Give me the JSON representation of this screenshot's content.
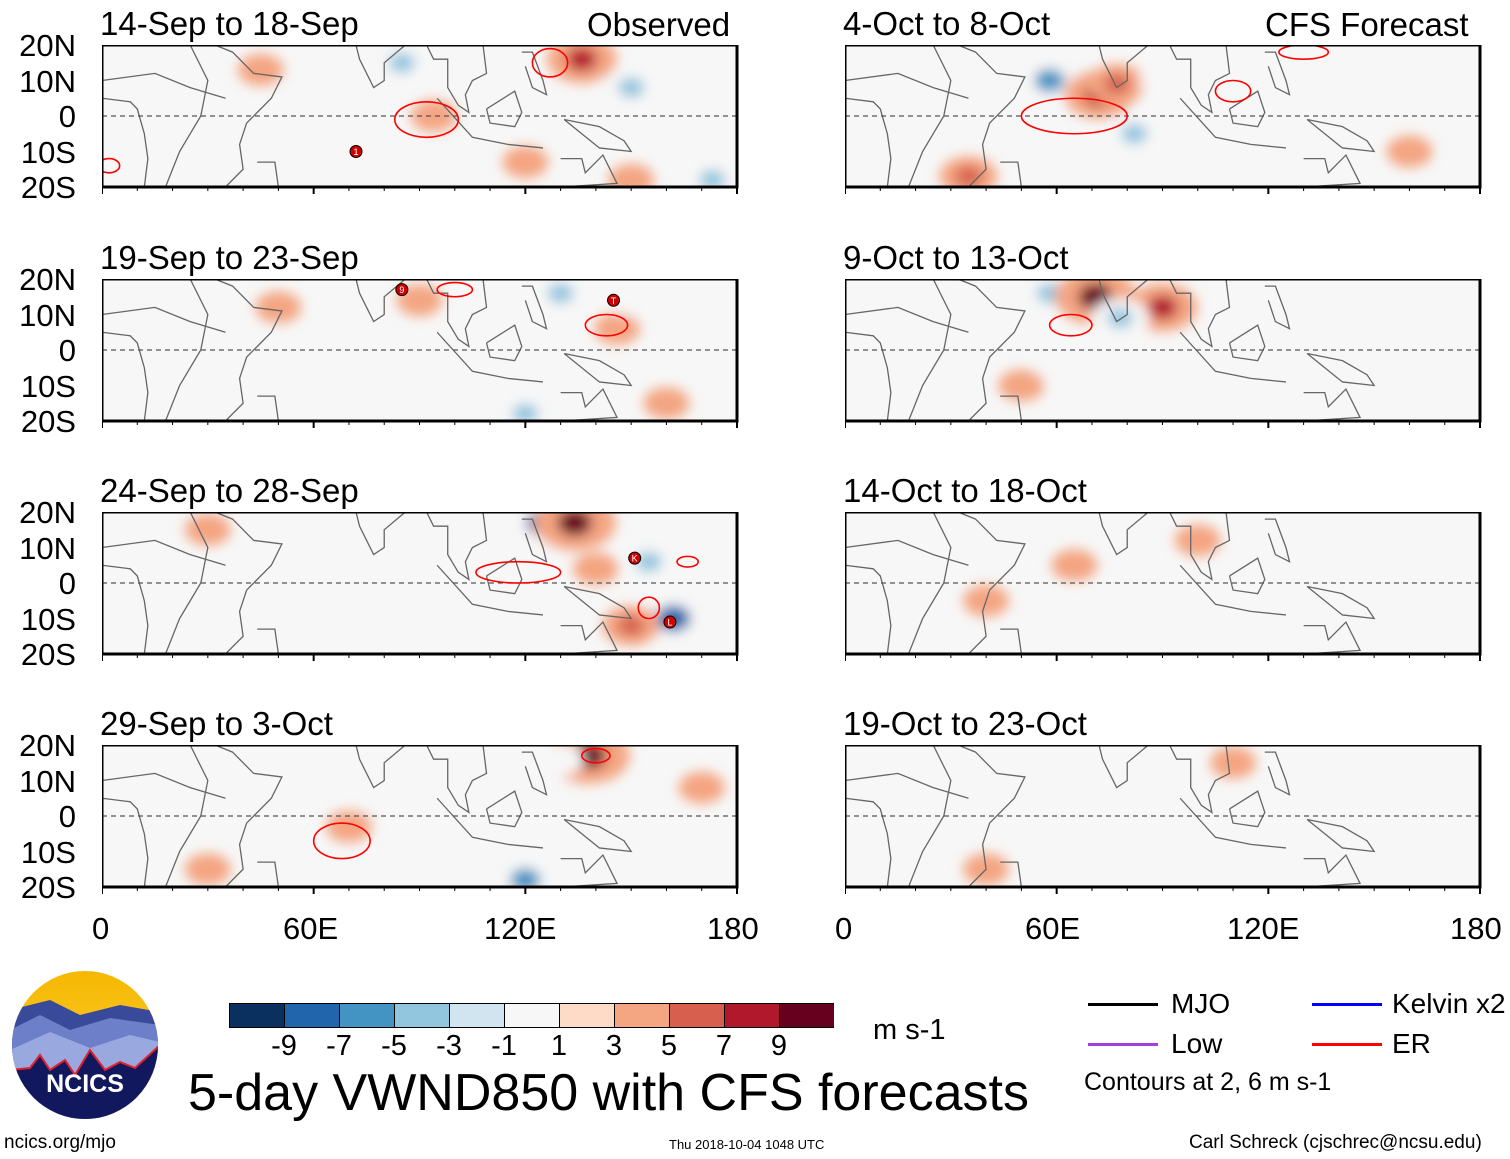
{
  "labels": {
    "observed": "Observed",
    "forecast": "CFS Forecast"
  },
  "lat_ticks": [
    "20N",
    "10N",
    "0",
    "10S",
    "20S"
  ],
  "lon_ticks": [
    "0",
    "60E",
    "120E",
    "180"
  ],
  "chart_data": {
    "type": "heatmap",
    "title": "5-day VWND850 with CFS forecasts",
    "variable": "850-hPa meridional wind anomaly",
    "units": "m s-1",
    "xlim": [
      0,
      180
    ],
    "ylim": [
      -20,
      20
    ],
    "colorbar": {
      "levels": [
        "-9",
        "-7",
        "-5",
        "-3",
        "-1",
        "1",
        "3",
        "5",
        "7",
        "9"
      ],
      "colors": [
        "#0a3060",
        "#2166ac",
        "#4393c3",
        "#92c5de",
        "#d1e5f0",
        "#f7f7f7",
        "#fddbc7",
        "#f4a582",
        "#d6604d",
        "#b2182b",
        "#67001f"
      ]
    },
    "panels": [
      {
        "title": "14-Sep to 18-Sep",
        "side": "observed",
        "blobs": [
          [
            85,
            15,
            -5
          ],
          [
            94,
            0,
            3
          ],
          [
            136,
            16,
            7
          ],
          [
            60,
            6,
            -3
          ],
          [
            150,
            8,
            -5
          ],
          [
            173,
            -18,
            -5
          ],
          [
            45,
            13,
            3
          ],
          [
            120,
            -13,
            3
          ],
          [
            150,
            -18,
            3
          ]
        ],
        "contours": [
          [
            92,
            -1,
            9,
            5
          ],
          [
            127,
            15,
            5,
            4
          ],
          [
            2,
            -14,
            3,
            2
          ]
        ],
        "storms": [
          {
            "lon": 72,
            "lat": -10,
            "label": "1"
          }
        ]
      },
      {
        "title": "19-Sep to 23-Sep",
        "side": "observed",
        "blobs": [
          [
            130,
            16,
            -5
          ],
          [
            146,
            6,
            3
          ],
          [
            150,
            14,
            -3
          ],
          [
            120,
            -18,
            -5
          ],
          [
            50,
            12,
            3
          ],
          [
            90,
            14,
            3
          ],
          [
            160,
            -15,
            3
          ],
          [
            40,
            -10,
            -3
          ],
          [
            110,
            0,
            -3
          ]
        ],
        "contours": [
          [
            143,
            7,
            6,
            3
          ],
          [
            100,
            17,
            5,
            2
          ]
        ],
        "storms": [
          {
            "lon": 85,
            "lat": 17,
            "label": "9"
          },
          {
            "lon": 145,
            "lat": 14,
            "label": "T"
          }
        ]
      },
      {
        "title": "24-Sep to 28-Sep",
        "side": "observed",
        "blobs": [
          [
            125,
            17,
            -9
          ],
          [
            134,
            17,
            9
          ],
          [
            155,
            6,
            -5
          ],
          [
            162,
            -10,
            -9
          ],
          [
            150,
            -12,
            5
          ],
          [
            55,
            3,
            -3
          ],
          [
            30,
            15,
            3
          ],
          [
            110,
            10,
            -3
          ],
          [
            140,
            4,
            3
          ]
        ],
        "contours": [
          [
            118,
            3,
            12,
            3
          ],
          [
            155,
            -7,
            3,
            3
          ],
          [
            166,
            6,
            3,
            1.5
          ]
        ],
        "storms": [
          {
            "lon": 151,
            "lat": 7,
            "label": "K"
          },
          {
            "lon": 161,
            "lat": -11,
            "label": "L"
          }
        ]
      },
      {
        "title": "29-Sep to 3-Oct",
        "side": "observed",
        "blobs": [
          [
            138,
            17,
            9
          ],
          [
            130,
            16,
            -3
          ],
          [
            55,
            10,
            -3
          ],
          [
            70,
            -3,
            3
          ],
          [
            120,
            -18,
            -7
          ],
          [
            30,
            -15,
            3
          ],
          [
            170,
            8,
            3
          ],
          [
            100,
            5,
            -3
          ]
        ],
        "contours": [
          [
            68,
            -7,
            8,
            5
          ],
          [
            140,
            17,
            4,
            2
          ]
        ],
        "storms": []
      },
      {
        "title": "4-Oct to 8-Oct",
        "side": "forecast",
        "blobs": [
          [
            58,
            10,
            -7
          ],
          [
            72,
            6,
            7
          ],
          [
            77,
            9,
            5
          ],
          [
            82,
            -5,
            -5
          ],
          [
            90,
            10,
            -3
          ],
          [
            35,
            -17,
            5
          ],
          [
            145,
            -2,
            -3
          ],
          [
            160,
            -10,
            3
          ],
          [
            120,
            15,
            -3
          ]
        ],
        "contours": [
          [
            65,
            0,
            15,
            5
          ],
          [
            110,
            7,
            5,
            3
          ],
          [
            130,
            18,
            7,
            2
          ]
        ],
        "storms": []
      },
      {
        "title": "9-Oct to 13-Oct",
        "side": "forecast",
        "blobs": [
          [
            58,
            16,
            -5
          ],
          [
            71,
            15,
            9
          ],
          [
            90,
            12,
            7
          ],
          [
            78,
            9,
            -5
          ],
          [
            60,
            -5,
            -3
          ],
          [
            85,
            -12,
            -3
          ],
          [
            150,
            10,
            -3
          ],
          [
            50,
            -10,
            3
          ]
        ],
        "contours": [
          [
            64,
            7,
            6,
            3
          ]
        ],
        "storms": []
      },
      {
        "title": "14-Oct to 18-Oct",
        "side": "forecast",
        "blobs": [
          [
            65,
            5,
            3
          ],
          [
            160,
            0,
            -3
          ],
          [
            90,
            -5,
            -3
          ],
          [
            130,
            10,
            -3
          ],
          [
            40,
            -5,
            3
          ],
          [
            100,
            12,
            3
          ]
        ],
        "contours": [],
        "storms": []
      },
      {
        "title": "19-Oct to 23-Oct",
        "side": "forecast",
        "blobs": [
          [
            110,
            15,
            3
          ],
          [
            150,
            5,
            -3
          ],
          [
            130,
            10,
            -3
          ],
          [
            60,
            -5,
            -3
          ],
          [
            40,
            -15,
            3
          ],
          [
            80,
            0,
            -3
          ]
        ],
        "contours": [],
        "storms": []
      }
    ]
  },
  "legend": {
    "items": [
      {
        "label": "MJO",
        "color": "#000000"
      },
      {
        "label": "Kelvin x2",
        "color": "#0000ff"
      },
      {
        "label": "Low",
        "color": "#a040e0"
      },
      {
        "label": "ER",
        "color": "#ff0000"
      }
    ],
    "contours_note": "Contours at 2, 6 m s-1"
  },
  "logo_text": "NCICS",
  "footer": {
    "url": "ncics.org/mjo",
    "timestamp": "Thu 2018-10-04 1048 UTC",
    "author": "Carl Schreck (cjschrec@ncsu.edu)"
  }
}
